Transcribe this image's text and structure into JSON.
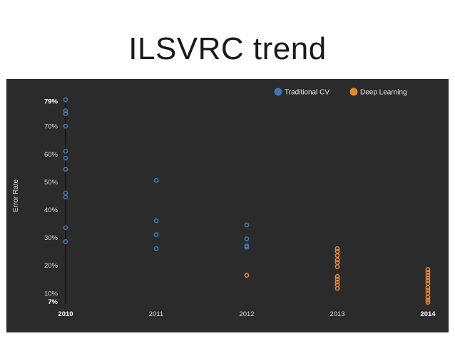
{
  "slide": {
    "title": "ILSVRC trend"
  },
  "colors": {
    "traditional": "#3f78b5",
    "deep": "#e8862f",
    "panel": "#2b2b2b"
  },
  "chart_data": {
    "type": "scatter",
    "title": "",
    "xlabel": "",
    "ylabel": "Error Rate",
    "categories": [
      "2010",
      "2011",
      "2012",
      "2013",
      "2014"
    ],
    "bold_categories": [
      "2010",
      "2014"
    ],
    "ylim": [
      7,
      79
    ],
    "yticks": [
      {
        "value": 7,
        "label": "7%",
        "bold": true
      },
      {
        "value": 10,
        "label": "10%",
        "bold": false
      },
      {
        "value": 20,
        "label": "20%",
        "bold": false
      },
      {
        "value": 30,
        "label": "30%",
        "bold": false
      },
      {
        "value": 40,
        "label": "40%",
        "bold": false
      },
      {
        "value": 50,
        "label": "50%",
        "bold": false
      },
      {
        "value": 60,
        "label": "60%",
        "bold": false
      },
      {
        "value": 70,
        "label": "70%",
        "bold": false
      },
      {
        "value": 79,
        "label": "79%",
        "bold": true
      }
    ],
    "legend_position": "top-right",
    "grid": false,
    "series": [
      {
        "name": "Traditional CV",
        "color": "#3f78b5",
        "points": [
          {
            "x": "2010",
            "y": 79.5
          },
          {
            "x": "2010",
            "y": 75.5
          },
          {
            "x": "2010",
            "y": 74.5
          },
          {
            "x": "2010",
            "y": 70
          },
          {
            "x": "2010",
            "y": 61
          },
          {
            "x": "2010",
            "y": 58.5
          },
          {
            "x": "2010",
            "y": 54.5
          },
          {
            "x": "2010",
            "y": 46
          },
          {
            "x": "2010",
            "y": 44.5
          },
          {
            "x": "2010",
            "y": 33.5
          },
          {
            "x": "2010",
            "y": 28.5
          },
          {
            "x": "2011",
            "y": 50.5
          },
          {
            "x": "2011",
            "y": 36
          },
          {
            "x": "2011",
            "y": 31
          },
          {
            "x": "2011",
            "y": 26
          },
          {
            "x": "2012",
            "y": 34.5
          },
          {
            "x": "2012",
            "y": 29.5
          },
          {
            "x": "2012",
            "y": 27
          },
          {
            "x": "2012",
            "y": 26.5
          }
        ]
      },
      {
        "name": "Deep Learning",
        "color": "#e8862f",
        "points": [
          {
            "x": "2012",
            "y": 16.4
          },
          {
            "x": "2013",
            "y": 26
          },
          {
            "x": "2013",
            "y": 25
          },
          {
            "x": "2013",
            "y": 23.5
          },
          {
            "x": "2013",
            "y": 22
          },
          {
            "x": "2013",
            "y": 21
          },
          {
            "x": "2013",
            "y": 19.5
          },
          {
            "x": "2013",
            "y": 16
          },
          {
            "x": "2013",
            "y": 15
          },
          {
            "x": "2013",
            "y": 14
          },
          {
            "x": "2013",
            "y": 13
          },
          {
            "x": "2013",
            "y": 11.7
          },
          {
            "x": "2014",
            "y": 18.5
          },
          {
            "x": "2014",
            "y": 17.5
          },
          {
            "x": "2014",
            "y": 16.5
          },
          {
            "x": "2014",
            "y": 15.5
          },
          {
            "x": "2014",
            "y": 14.5
          },
          {
            "x": "2014",
            "y": 13.5
          },
          {
            "x": "2014",
            "y": 12
          },
          {
            "x": "2014",
            "y": 11
          },
          {
            "x": "2014",
            "y": 10
          },
          {
            "x": "2014",
            "y": 8.5
          },
          {
            "x": "2014",
            "y": 7.5
          },
          {
            "x": "2014",
            "y": 6.7
          }
        ]
      }
    ]
  }
}
